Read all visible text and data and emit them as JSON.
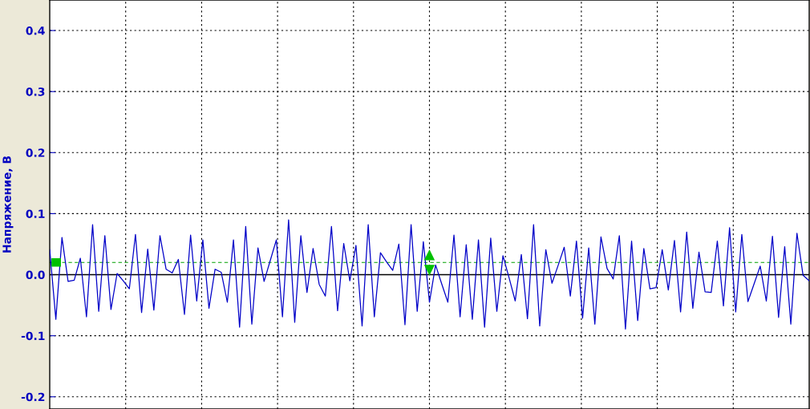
{
  "chart_data": {
    "type": "line",
    "ylabel": "Напряжение, В",
    "categories": [
      null,
      null,
      null,
      null,
      null,
      null,
      null,
      null,
      null,
      null,
      null,
      null,
      null,
      null,
      null,
      null,
      null,
      null,
      null,
      null,
      null,
      null,
      null,
      null,
      null,
      null,
      null,
      null,
      null,
      null,
      null,
      null,
      null,
      null,
      null,
      null,
      null,
      null,
      null,
      null,
      null,
      null,
      null,
      null,
      null,
      null,
      null,
      null,
      null,
      null,
      null,
      null,
      null,
      null,
      null,
      null,
      null,
      null,
      null,
      null,
      null,
      null,
      null,
      null,
      null,
      null,
      null,
      null,
      null,
      null,
      null,
      null,
      null,
      null,
      null,
      null,
      null,
      null,
      null,
      null,
      null,
      null,
      null,
      null,
      null,
      null,
      null,
      null,
      null,
      null,
      null,
      null,
      null,
      null,
      null,
      null,
      null,
      null,
      null,
      null,
      null,
      null,
      null,
      null,
      null,
      null,
      null,
      null,
      null,
      null,
      null,
      null,
      null,
      null,
      null,
      null,
      null,
      null,
      null,
      null,
      null,
      null,
      null,
      null,
      null
    ],
    "series": [
      {
        "color": "#0000c8",
        "values": [
          0.041,
          -0.073,
          0.061,
          -0.011,
          -0.009,
          0.027,
          -0.069,
          0.082,
          -0.06,
          0.064,
          -0.057,
          0.002,
          -0.01,
          -0.023,
          0.066,
          -0.062,
          0.042,
          -0.058,
          0.064,
          0.009,
          0.003,
          0.025,
          -0.065,
          0.065,
          -0.043,
          0.057,
          -0.055,
          0.009,
          0.004,
          -0.045,
          0.057,
          -0.086,
          0.079,
          -0.081,
          0.044,
          -0.011,
          0.023,
          0.057,
          -0.069,
          0.09,
          -0.078,
          0.064,
          -0.029,
          0.043,
          -0.016,
          -0.035,
          0.079,
          -0.059,
          0.051,
          -0.01,
          0.048,
          -0.084,
          0.082,
          -0.069,
          0.036,
          0.021,
          0.007,
          0.05,
          -0.082,
          0.082,
          -0.06,
          0.054,
          -0.045,
          0.016,
          -0.015,
          -0.045,
          0.065,
          -0.069,
          0.049,
          -0.073,
          0.057,
          -0.086,
          0.06,
          -0.06,
          0.031,
          -0.005,
          -0.043,
          0.033,
          -0.072,
          0.082,
          -0.084,
          0.041,
          -0.014,
          0.015,
          0.045,
          -0.035,
          0.055,
          -0.071,
          0.044,
          -0.081,
          0.062,
          0.01,
          -0.007,
          0.064,
          -0.089,
          0.055,
          -0.075,
          0.043,
          -0.023,
          -0.021,
          0.041,
          -0.025,
          0.056,
          -0.061,
          0.07,
          -0.055,
          0.037,
          -0.028,
          -0.029,
          0.055,
          -0.051,
          0.077,
          -0.061,
          0.066,
          -0.044,
          -0.015,
          0.014,
          -0.043,
          0.063,
          -0.07,
          0.046,
          -0.081,
          0.068,
          -0.001,
          -0.01
        ]
      }
    ],
    "ylim": [
      -0.22,
      0.45
    ],
    "yticks": [
      -0.2,
      -0.1,
      {
        "value": 0,
        "label": "0.0"
      },
      0.1,
      0.2,
      0.3,
      0.4
    ],
    "ref_lines": [
      {
        "axis": "y",
        "value": 0,
        "color": "#000000",
        "line_style": "solid"
      },
      {
        "axis": "y",
        "value": 0.02,
        "color": "#00a000",
        "line_style": "dashed"
      }
    ],
    "grid": true,
    "legend": false,
    "marker": "none",
    "line_style": "solid",
    "tick_labels": "y"
  }
}
